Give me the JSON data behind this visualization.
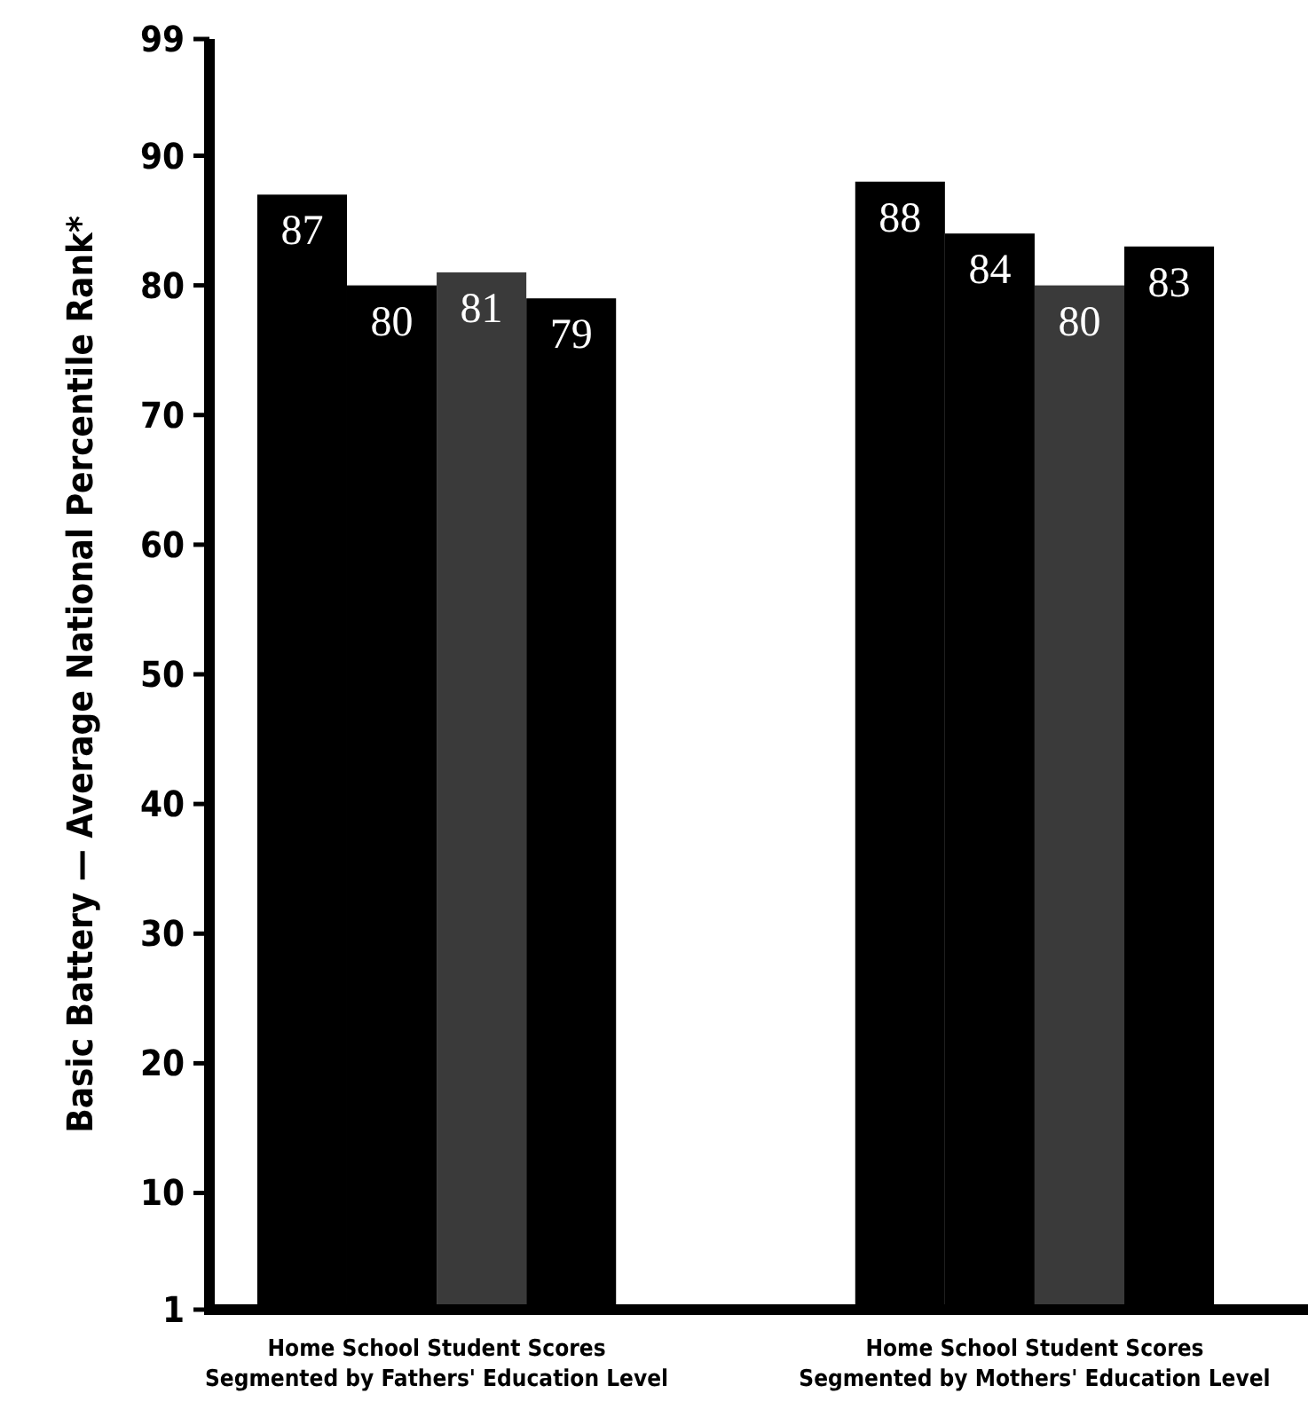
{
  "chart_data": {
    "type": "bar",
    "ylabel": "Basic Battery — Average National Percentile Rank*",
    "categories": [
      "Home School Student Scores\nSegmented by Fathers' Education Level",
      "Home School Student Scores\nSegmented by Mothers' Education Level"
    ],
    "series": [
      {
        "color": "#000000",
        "values": [
          87,
          88
        ]
      },
      {
        "color": "#000000",
        "values": [
          80,
          84
        ]
      },
      {
        "color": "#3a3a3a",
        "values": [
          81,
          80
        ]
      },
      {
        "color": "#000000",
        "values": [
          79,
          83
        ]
      }
    ],
    "ylim": [
      1,
      99
    ],
    "yticks": [
      1,
      10,
      20,
      30,
      40,
      50,
      60,
      70,
      80,
      90,
      99
    ],
    "data_labels": true
  }
}
